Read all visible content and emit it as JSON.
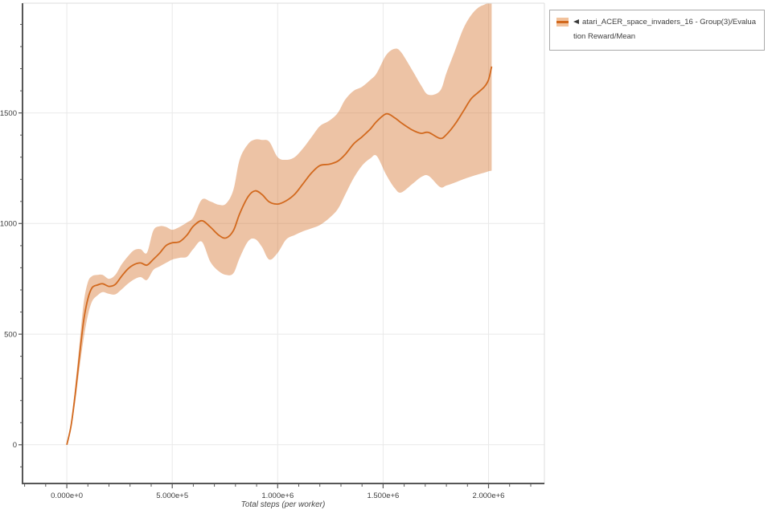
{
  "legend": {
    "series_label": "atari_ACER_space_invaders_16 - Group(3)/Evaluation Reward/Mean",
    "swatch_band_color": "#f2c29c",
    "swatch_line_color": "#d2691e",
    "collapse_icon": "left-triangle"
  },
  "colors": {
    "accent_line": "#d2691e",
    "grid": "#e9e9e9",
    "spine_dark": "#565656",
    "spine_light": "#dcdcdc",
    "tick_label": "#3d3d3d"
  },
  "chart_data": {
    "type": "line",
    "title": "",
    "xlabel": "Total steps (per worker)",
    "ylabel": "",
    "grid": true,
    "legend_position": "outside-top-right",
    "xlim": [
      -210000,
      2265000
    ],
    "ylim": [
      -175,
      1996
    ],
    "x_ticks": [
      {
        "value": 0,
        "label": "0.000e+0"
      },
      {
        "value": 500000,
        "label": "5.000e+5"
      },
      {
        "value": 1000000,
        "label": "1.000e+6"
      },
      {
        "value": 1500000,
        "label": "1.500e+6"
      },
      {
        "value": 2000000,
        "label": "2.000e+6"
      }
    ],
    "y_ticks": [
      {
        "value": 0,
        "label": "0"
      },
      {
        "value": 500,
        "label": "500"
      },
      {
        "value": 1000,
        "label": "1000"
      },
      {
        "value": 1500,
        "label": "1500"
      }
    ],
    "x_minor_tick_step": 100000,
    "x_minor_tick_range": [
      -200000,
      2200000
    ],
    "y_minor_tick_step": 100,
    "y_minor_tick_range": [
      -100,
      1900
    ],
    "series": [
      {
        "name": "atari_ACER_space_invaders_16 - Group(3)/Evaluation Reward/Mean",
        "line_color": "#d2691e",
        "band_opacity": 0.4,
        "x_steps": [
          0,
          20000,
          40000,
          60000,
          80000,
          100000,
          120000,
          145000,
          170000,
          200000,
          230000,
          260000,
          290000,
          320000,
          350000,
          380000,
          410000,
          440000,
          470000,
          500000,
          535000,
          570000,
          600000,
          640000,
          680000,
          720000,
          755000,
          790000,
          820000,
          860000,
          893000,
          925000,
          960000,
          1000000,
          1040000,
          1080000,
          1120000,
          1160000,
          1200000,
          1245000,
          1285000,
          1320000,
          1360000,
          1400000,
          1440000,
          1470000,
          1515000,
          1555000,
          1585000,
          1640000,
          1680000,
          1715000,
          1770000,
          1800000,
          1840000,
          1880000,
          1916000,
          1950000,
          1980000,
          2000000,
          2015000
        ],
        "mean": [
          0,
          85,
          230,
          400,
          560,
          660,
          710,
          722,
          728,
          716,
          725,
          762,
          795,
          815,
          822,
          812,
          838,
          866,
          900,
          913,
          918,
          948,
          988,
          1013,
          985,
          948,
          935,
          968,
          1045,
          1122,
          1148,
          1132,
          1098,
          1088,
          1103,
          1132,
          1180,
          1228,
          1262,
          1268,
          1282,
          1312,
          1360,
          1392,
          1428,
          1462,
          1496,
          1478,
          1456,
          1422,
          1408,
          1412,
          1385,
          1402,
          1448,
          1507,
          1562,
          1592,
          1618,
          1650,
          1710
        ],
        "band_low": [
          0,
          70,
          195,
          345,
          480,
          585,
          648,
          675,
          690,
          682,
          680,
          702,
          728,
          748,
          758,
          745,
          790,
          806,
          822,
          837,
          845,
          850,
          885,
          918,
          828,
          785,
          768,
          775,
          845,
          920,
          930,
          895,
          837,
          868,
          928,
          948,
          965,
          978,
          993,
          1025,
          1065,
          1130,
          1205,
          1262,
          1295,
          1305,
          1220,
          1160,
          1140,
          1180,
          1210,
          1216,
          1165,
          1172,
          1185,
          1200,
          1212,
          1222,
          1230,
          1236,
          1239
        ],
        "band_high": [
          0,
          100,
          265,
          455,
          640,
          735,
          762,
          768,
          768,
          750,
          768,
          815,
          852,
          880,
          884,
          868,
          968,
          988,
          985,
          972,
          985,
          1005,
          1028,
          1108,
          1100,
          1085,
          1090,
          1152,
          1290,
          1360,
          1380,
          1378,
          1370,
          1300,
          1288,
          1300,
          1340,
          1390,
          1440,
          1465,
          1500,
          1560,
          1600,
          1618,
          1650,
          1680,
          1762,
          1790,
          1775,
          1690,
          1625,
          1582,
          1600,
          1680,
          1780,
          1880,
          1940,
          1975,
          1990,
          1996,
          1996
        ]
      }
    ]
  }
}
